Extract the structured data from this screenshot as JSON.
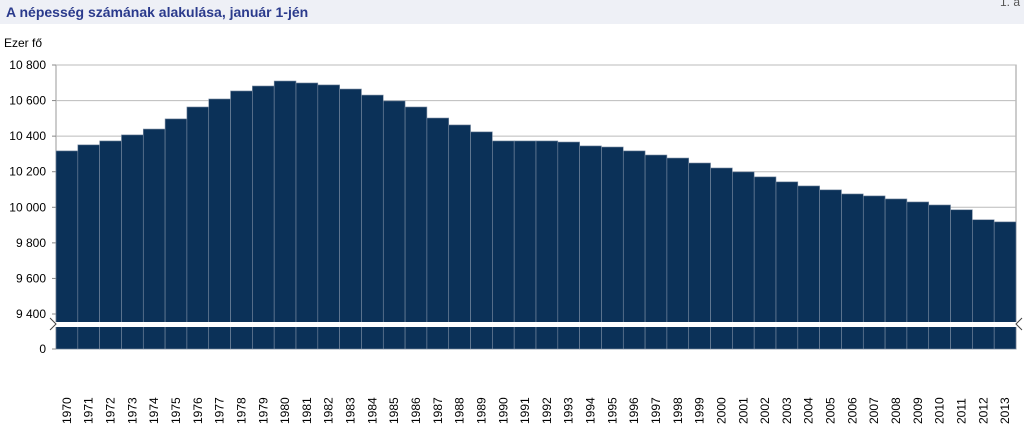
{
  "chart_data": {
    "type": "bar",
    "title": "A népesség számának alakulása, január 1-jén",
    "corner_text": "1. á",
    "y_label": "Ezer fő",
    "categories": [
      "1970",
      "1971",
      "1972",
      "1973",
      "1974",
      "1975",
      "1976",
      "1977",
      "1978",
      "1979",
      "1980",
      "1981",
      "1982",
      "1983",
      "1984",
      "1985",
      "1986",
      "1987",
      "1988",
      "1989",
      "1990",
      "1991",
      "1992",
      "1993",
      "1994",
      "1995",
      "1996",
      "1997",
      "1998",
      "1999",
      "2000",
      "2001",
      "2002",
      "2003",
      "2004",
      "2005",
      "2006",
      "2007",
      "2008",
      "2009",
      "2010",
      "2011",
      "2012",
      "2013"
    ],
    "values": [
      10317,
      10351,
      10373,
      10407,
      10440,
      10497,
      10564,
      10609,
      10654,
      10682,
      10710,
      10699,
      10688,
      10665,
      10631,
      10598,
      10564,
      10502,
      10463,
      10424,
      10373,
      10373,
      10373,
      10367,
      10345,
      10339,
      10317,
      10294,
      10277,
      10249,
      10221,
      10199,
      10171,
      10143,
      10120,
      10098,
      10075,
      10064,
      10047,
      10030,
      10013,
      9986,
      9930,
      9918
    ],
    "color": "#0b3158",
    "ylim": [
      9400,
      10800
    ],
    "yticks": [
      0,
      {
        "value": 9400,
        "label": "9 400"
      },
      {
        "value": 9600,
        "label": "9 600"
      },
      {
        "value": 9800,
        "label": "9 800"
      },
      {
        "value": 10000,
        "label": "10 000"
      },
      {
        "value": 10200,
        "label": "10 200"
      },
      {
        "value": 10400,
        "label": "10 400"
      },
      {
        "value": 10600,
        "label": "10 600"
      },
      {
        "value": 10800,
        "label": "10 800"
      }
    ],
    "axis_break": true,
    "grid": true
  }
}
